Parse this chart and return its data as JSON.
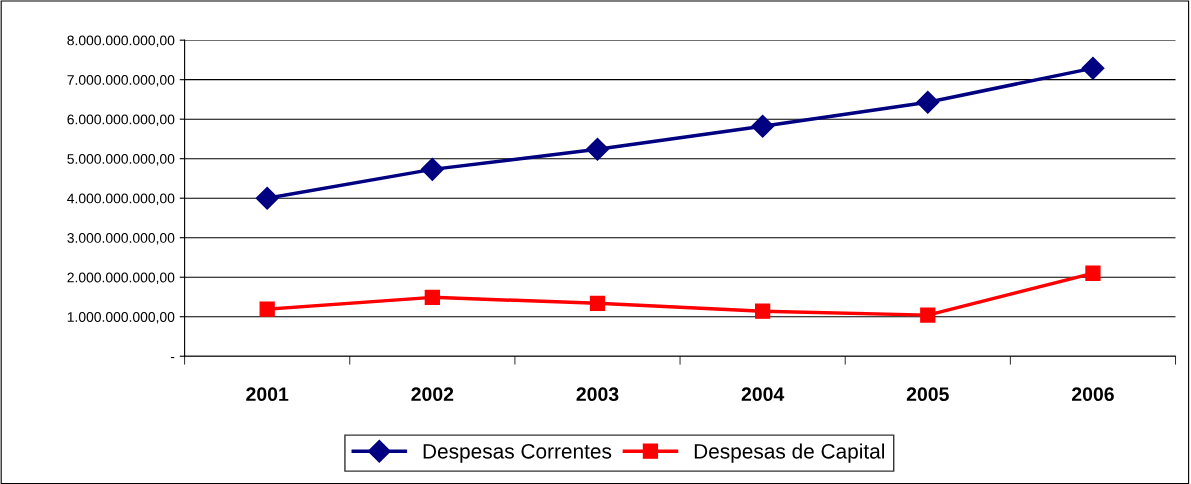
{
  "chart_data": {
    "type": "line",
    "categories": [
      "2001",
      "2002",
      "2003",
      "2004",
      "2005",
      "2006"
    ],
    "series": [
      {
        "name": "Despesas Correntes",
        "color": "#000080",
        "marker": "diamond",
        "values": [
          4000000000,
          4730000000,
          5240000000,
          5820000000,
          6430000000,
          7290000000
        ]
      },
      {
        "name": "Despesas de Capital",
        "color": "#ff0000",
        "marker": "square",
        "values": [
          1190000000,
          1490000000,
          1340000000,
          1140000000,
          1040000000,
          2100000000
        ]
      }
    ],
    "ylim": [
      0,
      8000000000
    ],
    "yticks": [
      {
        "value": 0,
        "label": "-"
      },
      {
        "value": 1000000000,
        "label": "1.000.000.000,00"
      },
      {
        "value": 2000000000,
        "label": "2.000.000.000,00"
      },
      {
        "value": 3000000000,
        "label": "3.000.000.000,00"
      },
      {
        "value": 4000000000,
        "label": "4.000.000.000,00"
      },
      {
        "value": 5000000000,
        "label": "5.000.000.000,00"
      },
      {
        "value": 6000000000,
        "label": "6.000.000.000,00"
      },
      {
        "value": 7000000000,
        "label": "7.000.000.000,00"
      },
      {
        "value": 8000000000,
        "label": "8.000.000.000,00"
      }
    ],
    "grid": "y",
    "legend": "bottom",
    "line_style": "solid"
  }
}
